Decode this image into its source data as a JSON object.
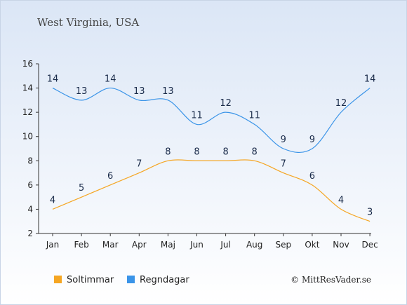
{
  "chart_data": {
    "type": "line",
    "title": "West Virginia, USA",
    "categories": [
      "Jan",
      "Feb",
      "Mar",
      "Apr",
      "Maj",
      "Jun",
      "Jul",
      "Aug",
      "Sep",
      "Okt",
      "Nov",
      "Dec"
    ],
    "ylim": [
      2,
      16
    ],
    "yticks": [
      2,
      4,
      6,
      8,
      10,
      12,
      14,
      16
    ],
    "series": [
      {
        "name": "Soltimmar",
        "color": "#f5a623",
        "values": [
          4,
          5,
          6,
          7,
          8,
          8,
          8,
          8,
          7,
          6,
          4,
          3
        ]
      },
      {
        "name": "Regndagar",
        "color": "#3a94e8",
        "values": [
          14,
          13,
          14,
          13,
          13,
          11,
          12,
          11,
          9,
          9,
          12,
          14
        ]
      }
    ],
    "legend": "bottom-left",
    "grid": false
  },
  "credit": "© MittResVader.se"
}
